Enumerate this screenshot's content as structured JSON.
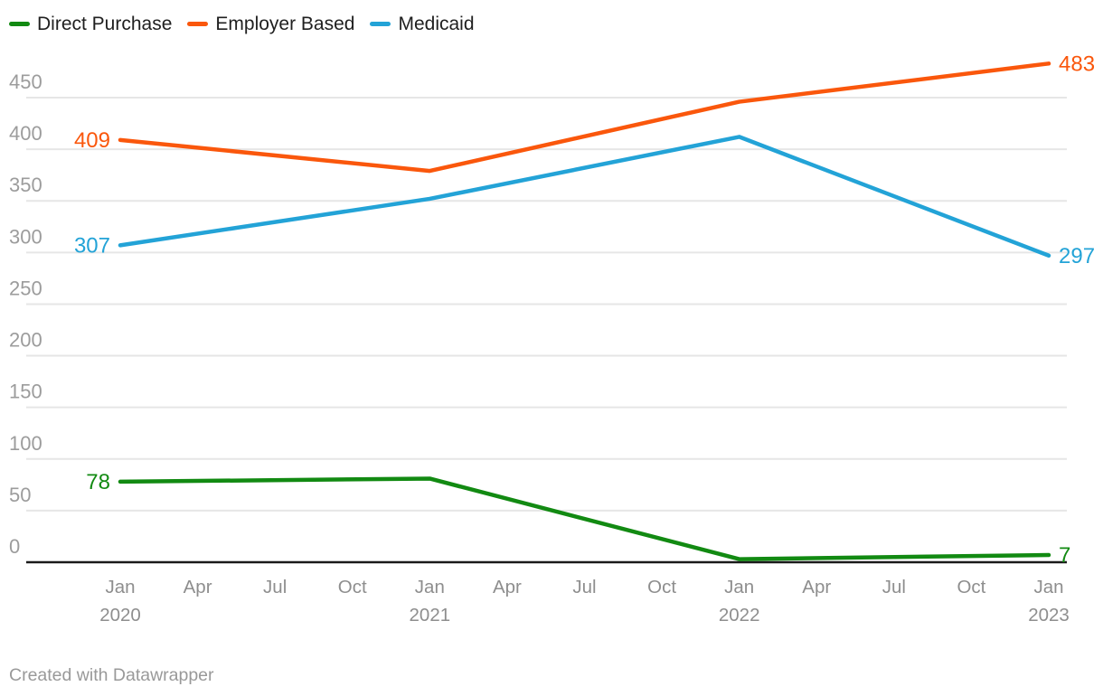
{
  "legend": {
    "position": "top-left"
  },
  "footer": {
    "text": "Created with Datawrapper"
  },
  "chart_data": {
    "type": "line",
    "x": [
      "Jan 2020",
      "Jan 2021",
      "Jan 2022",
      "Jan 2023"
    ],
    "series": [
      {
        "name": "Direct Purchase",
        "color": "#128a12",
        "values": [
          78,
          81,
          3,
          7
        ],
        "start_label": "78",
        "end_label": "7"
      },
      {
        "name": "Employer Based",
        "color": "#fa570c",
        "values": [
          409,
          379,
          446,
          483
        ],
        "start_label": "409",
        "end_label": "483"
      },
      {
        "name": "Medicaid",
        "color": "#23a3d7",
        "values": [
          307,
          352,
          412,
          297
        ],
        "start_label": "307",
        "end_label": "297"
      }
    ],
    "x_tick_months": [
      "Jan",
      "Apr",
      "Jul",
      "Oct",
      "Jan",
      "Apr",
      "Jul",
      "Oct",
      "Jan",
      "Apr",
      "Jul",
      "Oct",
      "Jan"
    ],
    "x_tick_years": [
      "2020",
      "",
      "",
      "",
      "2021",
      "",
      "",
      "",
      "2022",
      "",
      "",
      "",
      "2023"
    ],
    "y_ticks": [
      0,
      50,
      100,
      150,
      200,
      250,
      300,
      350,
      400,
      450
    ],
    "ylim": [
      0,
      490
    ],
    "grid": "horizontal",
    "legend_position": "top-left",
    "axis": {
      "y_tick_color": "#9c9c9c",
      "x_tick_color": "#8e8e8e",
      "grid_color": "#e6e6e6",
      "baseline_color": "#1a1a1a"
    }
  }
}
